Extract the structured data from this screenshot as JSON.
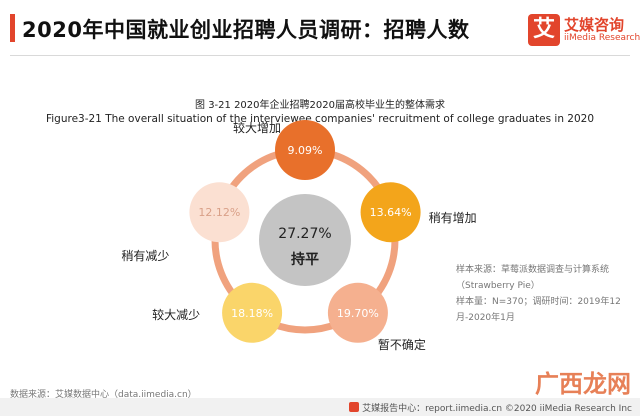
{
  "page": {
    "title": "2020年中国就业创业招聘人员调研：招聘人数"
  },
  "logo": {
    "glyph": "艾",
    "name_cn": "艾媒咨询",
    "name_en": "iiMedia Research"
  },
  "figure": {
    "title_cn": "图 3-21 2020年企业招聘2020届高校毕业生的整体需求",
    "title_en": "Figure3-21  The overall situation of the interviewee companies' recruitment of college graduates in 2020"
  },
  "chart_data": {
    "type": "pie",
    "categories": [
      "较大增加",
      "稍有增加",
      "暂不确定",
      "较大减少",
      "稍有减少",
      "持平"
    ],
    "values": [
      9.09,
      13.64,
      19.7,
      18.18,
      12.12,
      27.27
    ],
    "value_labels": [
      "9.09%",
      "13.64%",
      "19.70%",
      "18.18%",
      "12.12%",
      "27.27%"
    ],
    "colors": [
      "#e8702b",
      "#f3a51b",
      "#f5b08f",
      "#fad56a",
      "#fbe0d2",
      "#c4c4c4"
    ],
    "ring_color": "#f0a27e",
    "unit": "%"
  },
  "notes": {
    "sample_source": "样本来源：草莓派数据调查与计算系统",
    "sample_source_en": "（Strawberry Pie）",
    "sample_size": "样本量：N=370；调研时间：2019年12",
    "sample_time": "月-2020年1月"
  },
  "source": "数据来源：艾媒数据中心（data.iimedia.cn）",
  "footer": "艾媒报告中心：report.iimedia.cn  ©2020  iiMedia Research  Inc",
  "watermark": "广西龙网"
}
